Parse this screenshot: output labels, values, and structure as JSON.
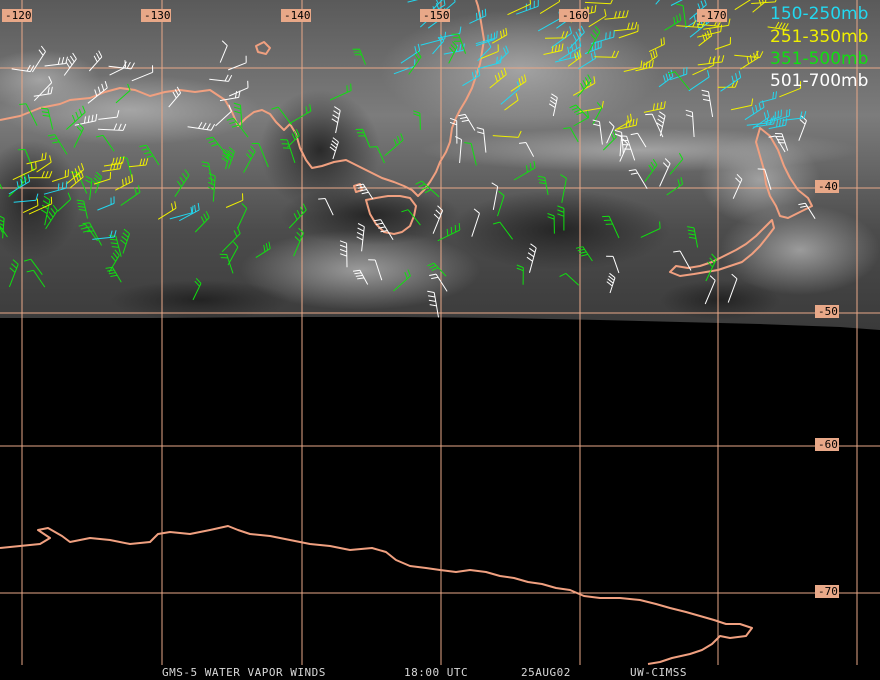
{
  "map": {
    "lon_labels": [
      "-120",
      "-130",
      "-140",
      "-150",
      "-160",
      "-170"
    ],
    "lat_labels": [
      "-40",
      "-50",
      "-60",
      "-70"
    ],
    "colors": {
      "cyan": "#22d8f0",
      "yellow": "#f0f000",
      "green": "#10e010",
      "white": "#ffffff",
      "coast": "#f0a080",
      "grid": "#e8a888"
    }
  },
  "legend": [
    {
      "label": "150-250mb",
      "color": "#22d8f0"
    },
    {
      "label": "251-350mb",
      "color": "#f0f000"
    },
    {
      "label": "351-500mb",
      "color": "#10e010"
    },
    {
      "label": "501-700mb",
      "color": "#ffffff"
    }
  ],
  "footer": {
    "satellite": "GMS-5 WATER VAPOR WINDS",
    "time": "18:00 UTC",
    "date": "25AUG02",
    "source": "UW-CIMSS"
  }
}
